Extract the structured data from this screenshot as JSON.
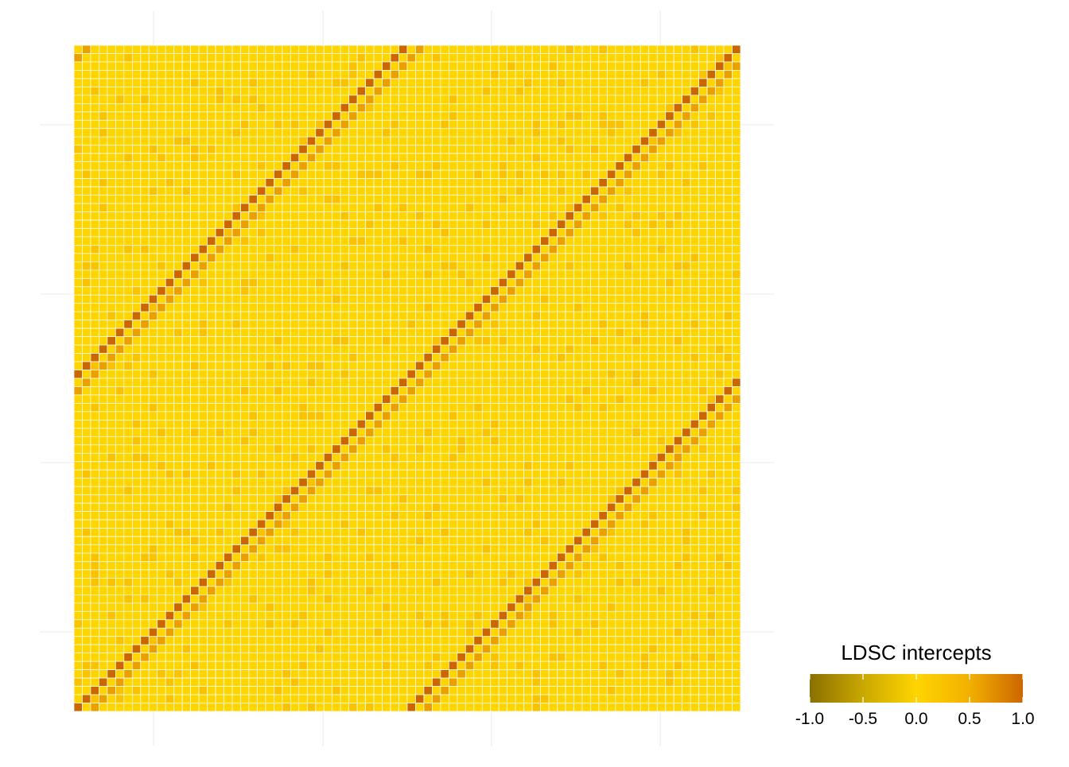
{
  "chart_data": {
    "type": "heatmap",
    "title": "",
    "xlabel": "",
    "ylabel": "",
    "grid": true,
    "legend": {
      "title": "LDSC intercepts",
      "placement": "bottom-right",
      "orientation": "horizontal",
      "range": [
        -1.0,
        1.0
      ],
      "ticks": [
        "-1.0",
        "-0.5",
        "0.0",
        "0.5",
        "1.0"
      ],
      "colors": [
        "#8a7000",
        "#c9a800",
        "#ffd500",
        "#f2b000",
        "#cc6600"
      ]
    },
    "matrix": {
      "n_rows": 80,
      "n_cols": 80,
      "background_value": 0.0,
      "diagonal_offsets": [
        0,
        40,
        -40
      ],
      "diagonal_value": 1.0,
      "secondary_offsets": [
        38,
        -42,
        78,
        -2
      ],
      "secondary_value": 0.6,
      "random_value": 0.25,
      "random_density": 0.07,
      "random_seed": 12345
    }
  }
}
